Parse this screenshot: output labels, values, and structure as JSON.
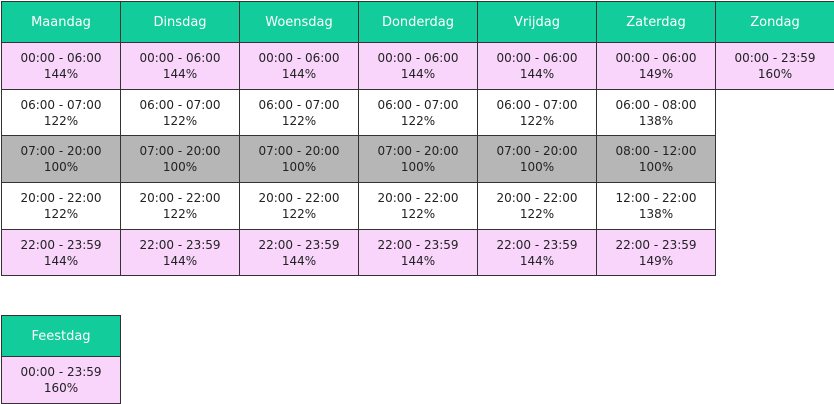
{
  "week": {
    "days": [
      {
        "name": "Maandag",
        "slots": [
          {
            "time": "00:00 - 06:00",
            "rate": "144%"
          },
          {
            "time": "06:00 - 07:00",
            "rate": "122%"
          },
          {
            "time": "07:00 - 20:00",
            "rate": "100%"
          },
          {
            "time": "20:00 - 22:00",
            "rate": "122%"
          },
          {
            "time": "22:00 - 23:59",
            "rate": "144%"
          }
        ]
      },
      {
        "name": "Dinsdag",
        "slots": [
          {
            "time": "00:00 - 06:00",
            "rate": "144%"
          },
          {
            "time": "06:00 - 07:00",
            "rate": "122%"
          },
          {
            "time": "07:00 - 20:00",
            "rate": "100%"
          },
          {
            "time": "20:00 - 22:00",
            "rate": "122%"
          },
          {
            "time": "22:00 - 23:59",
            "rate": "144%"
          }
        ]
      },
      {
        "name": "Woensdag",
        "slots": [
          {
            "time": "00:00 - 06:00",
            "rate": "144%"
          },
          {
            "time": "06:00 - 07:00",
            "rate": "122%"
          },
          {
            "time": "07:00 - 20:00",
            "rate": "100%"
          },
          {
            "time": "20:00 - 22:00",
            "rate": "122%"
          },
          {
            "time": "22:00 - 23:59",
            "rate": "144%"
          }
        ]
      },
      {
        "name": "Donderdag",
        "slots": [
          {
            "time": "00:00 - 06:00",
            "rate": "144%"
          },
          {
            "time": "06:00 - 07:00",
            "rate": "122%"
          },
          {
            "time": "07:00 - 20:00",
            "rate": "100%"
          },
          {
            "time": "20:00 - 22:00",
            "rate": "122%"
          },
          {
            "time": "22:00 - 23:59",
            "rate": "144%"
          }
        ]
      },
      {
        "name": "Vrijdag",
        "slots": [
          {
            "time": "00:00 - 06:00",
            "rate": "144%"
          },
          {
            "time": "06:00 - 07:00",
            "rate": "122%"
          },
          {
            "time": "07:00 - 20:00",
            "rate": "100%"
          },
          {
            "time": "20:00 - 22:00",
            "rate": "122%"
          },
          {
            "time": "22:00 - 23:59",
            "rate": "144%"
          }
        ]
      },
      {
        "name": "Zaterdag",
        "slots": [
          {
            "time": "00:00 - 06:00",
            "rate": "149%"
          },
          {
            "time": "06:00 - 08:00",
            "rate": "138%"
          },
          {
            "time": "08:00 - 12:00",
            "rate": "100%"
          },
          {
            "time": "12:00 - 22:00",
            "rate": "138%"
          },
          {
            "time": "22:00 - 23:59",
            "rate": "149%"
          }
        ]
      },
      {
        "name": "Zondag",
        "slots": [
          {
            "time": "00:00 - 23:59",
            "rate": "160%"
          }
        ]
      }
    ]
  },
  "holiday": {
    "days": [
      {
        "name": "Feestdag",
        "slots": [
          {
            "time": "00:00 - 23:59",
            "rate": "160%"
          }
        ]
      }
    ]
  }
}
